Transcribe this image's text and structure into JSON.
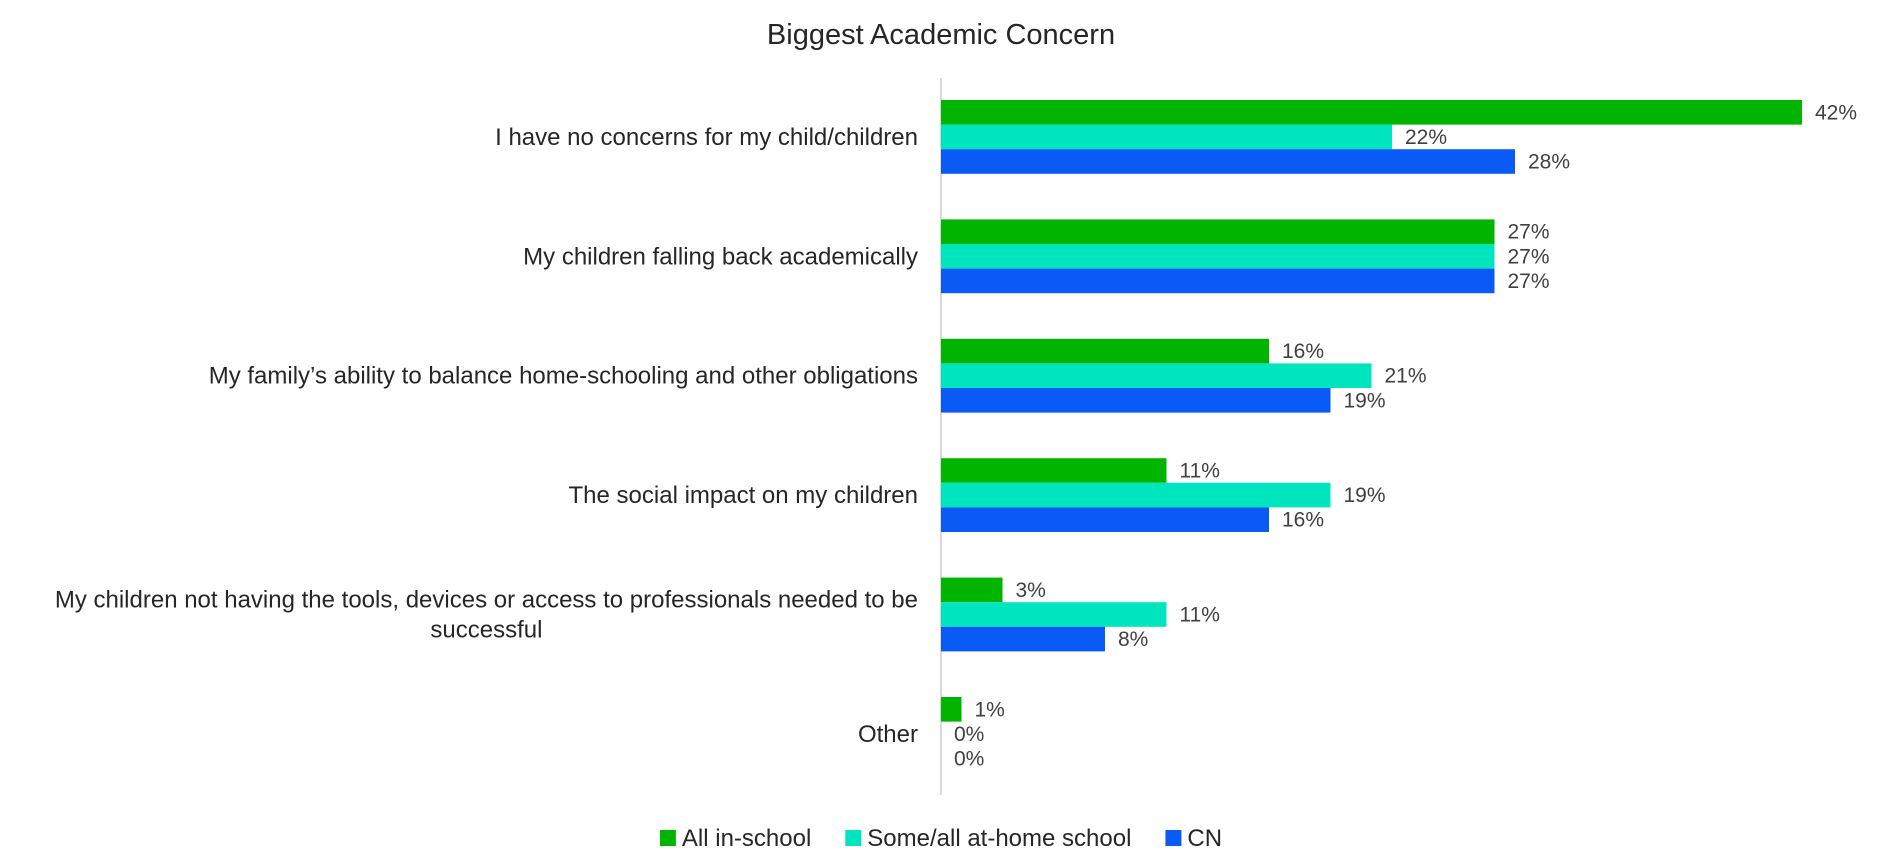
{
  "chart_data": {
    "type": "bar",
    "orientation": "horizontal",
    "title": "Biggest Academic Concern",
    "xlabel": "",
    "ylabel": "",
    "xlim": [
      0,
      60
    ],
    "grid": false,
    "legend_position": "bottom",
    "value_suffix": "%",
    "categories": [
      [
        "I have no concerns for my child/children"
      ],
      [
        "My children falling back academically"
      ],
      [
        "My family’s ability to balance home-schooling and other obligations"
      ],
      [
        "The social impact on my children"
      ],
      [
        "My children not having the tools, devices or access to professionals needed to be",
        "successful"
      ],
      [
        "Other"
      ]
    ],
    "series": [
      {
        "name": "All in-school",
        "color": "#00b400",
        "values": [
          42,
          27,
          16,
          11,
          3,
          1
        ]
      },
      {
        "name": "Some/all at-home school",
        "color": "#00e5be",
        "values": [
          22,
          27,
          21,
          19,
          11,
          0
        ]
      },
      {
        "name": "CN",
        "color": "#0a5bf5",
        "values": [
          28,
          27,
          19,
          16,
          8,
          0
        ]
      }
    ]
  }
}
